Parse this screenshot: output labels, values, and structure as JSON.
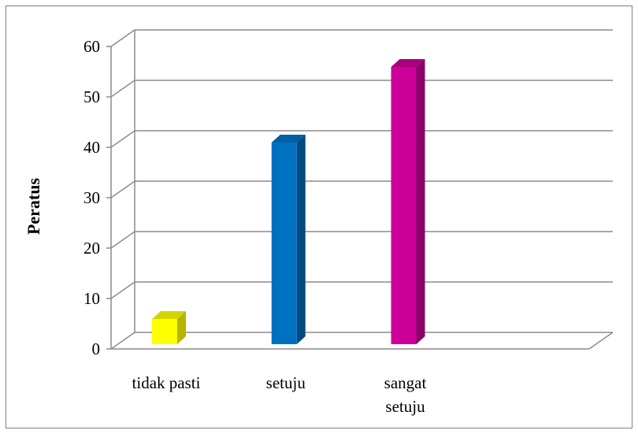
{
  "chart_data": {
    "type": "bar",
    "three_d": true,
    "categories": [
      "tidak pasti",
      "setuju",
      "sangat setuju"
    ],
    "category_lines": [
      [
        "tidak pasti"
      ],
      [
        "setuju"
      ],
      [
        "sangat",
        "setuju"
      ]
    ],
    "values": [
      5,
      40,
      55
    ],
    "colors": [
      "#ffff00",
      "#0070c0",
      "#cc0099"
    ],
    "side_colors": [
      "#b5b500",
      "#004a80",
      "#8a0066"
    ],
    "top_colors": [
      "#d4d400",
      "#005ea2",
      "#a8007c"
    ],
    "title": "",
    "xlabel": "",
    "ylabel": "Peratus",
    "ylim": [
      0,
      60
    ],
    "yticks": [
      "0",
      "10",
      "20",
      "30",
      "40",
      "50",
      "60"
    ],
    "grid": true,
    "legend": "none"
  }
}
